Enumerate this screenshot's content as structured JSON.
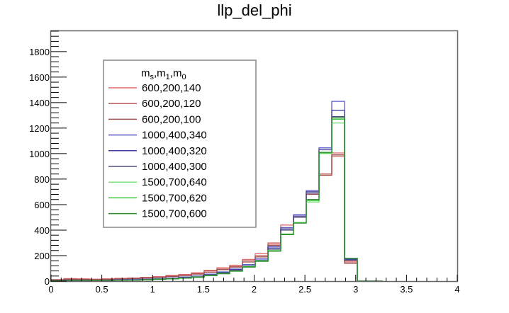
{
  "chart_data": {
    "type": "histogram",
    "title": "llp_del_phi",
    "xlabel": "",
    "ylabel": "",
    "xlim": [
      0,
      4
    ],
    "ylim": [
      0,
      1960
    ],
    "xticks": [
      "0",
      "0.5",
      "1",
      "1.5",
      "2",
      "2.5",
      "3",
      "3.5",
      "4"
    ],
    "yticks": [
      "0",
      "200",
      "400",
      "600",
      "800",
      "1000",
      "1200",
      "1400",
      "1600",
      "1800"
    ],
    "bin_edges": [
      0,
      0.1257,
      0.2513,
      0.377,
      0.5027,
      0.6283,
      0.754,
      0.8796,
      1.0053,
      1.131,
      1.2566,
      1.3823,
      1.508,
      1.6336,
      1.7593,
      1.885,
      2.0106,
      2.1363,
      2.2619,
      2.3876,
      2.5133,
      2.6389,
      2.7646,
      2.8903,
      3.0159,
      3.1416,
      3.2673
    ],
    "legend": {
      "title": "m_s,m_1,m_0",
      "title_main": "m",
      "title_parts": [
        {
          "sub": "s",
          "sep": ",m"
        },
        {
          "sub": "1",
          "sep": ",m"
        },
        {
          "sub": "0",
          "sep": ""
        }
      ],
      "position": "upper-left"
    },
    "series": [
      {
        "name": "600,200,140",
        "color": "#e06666",
        "values": [
          12,
          20,
          18,
          15,
          18,
          22,
          25,
          30,
          35,
          45,
          52,
          65,
          85,
          105,
          125,
          170,
          215,
          300,
          440,
          520,
          700,
          840,
          1005,
          160,
          0,
          0
        ]
      },
      {
        "name": "600,200,120",
        "color": "#c06060",
        "values": [
          10,
          16,
          15,
          14,
          16,
          20,
          22,
          28,
          32,
          40,
          48,
          60,
          80,
          95,
          115,
          160,
          200,
          290,
          420,
          510,
          690,
          840,
          980,
          150,
          0,
          0
        ]
      },
      {
        "name": "600,200,100",
        "color": "#a05050",
        "values": [
          8,
          14,
          13,
          12,
          14,
          18,
          20,
          24,
          30,
          36,
          44,
          55,
          70,
          90,
          110,
          150,
          190,
          280,
          410,
          500,
          680,
          830,
          990,
          140,
          0,
          0
        ]
      },
      {
        "name": "1000,400,340",
        "color": "#5a5ac8",
        "values": [
          5,
          8,
          7,
          6,
          8,
          10,
          12,
          15,
          20,
          25,
          32,
          40,
          55,
          72,
          95,
          130,
          175,
          270,
          420,
          520,
          710,
          1045,
          1410,
          175,
          0,
          0
        ]
      },
      {
        "name": "1000,400,320",
        "color": "#4040a0",
        "values": [
          4,
          6,
          6,
          5,
          6,
          8,
          10,
          13,
          18,
          22,
          30,
          38,
          50,
          68,
          90,
          120,
          165,
          260,
          410,
          510,
          700,
          1030,
          1340,
          170,
          0,
          0
        ]
      },
      {
        "name": "1000,400,300",
        "color": "#505080",
        "values": [
          3,
          5,
          5,
          4,
          5,
          7,
          9,
          12,
          16,
          20,
          28,
          35,
          48,
          65,
          85,
          115,
          160,
          250,
          400,
          500,
          690,
          1010,
          1290,
          165,
          0,
          0
        ]
      },
      {
        "name": "1500,700,640",
        "color": "#7ee07e",
        "values": [
          3,
          4,
          4,
          4,
          5,
          6,
          8,
          11,
          15,
          18,
          24,
          32,
          45,
          60,
          80,
          115,
          160,
          240,
          370,
          460,
          620,
          1000,
          1240,
          180,
          0,
          0
        ]
      },
      {
        "name": "1500,700,620",
        "color": "#3cc83c",
        "values": [
          3,
          4,
          4,
          4,
          5,
          6,
          8,
          10,
          14,
          18,
          24,
          31,
          44,
          60,
          80,
          113,
          158,
          238,
          368,
          458,
          630,
          1005,
          1270,
          180,
          0,
          0
        ]
      },
      {
        "name": "1500,700,600",
        "color": "#2e8b2e",
        "values": [
          3,
          4,
          4,
          4,
          5,
          6,
          8,
          10,
          14,
          17,
          23,
          30,
          43,
          58,
          78,
          110,
          155,
          235,
          365,
          455,
          640,
          1010,
          1280,
          180,
          0,
          0
        ]
      }
    ]
  }
}
